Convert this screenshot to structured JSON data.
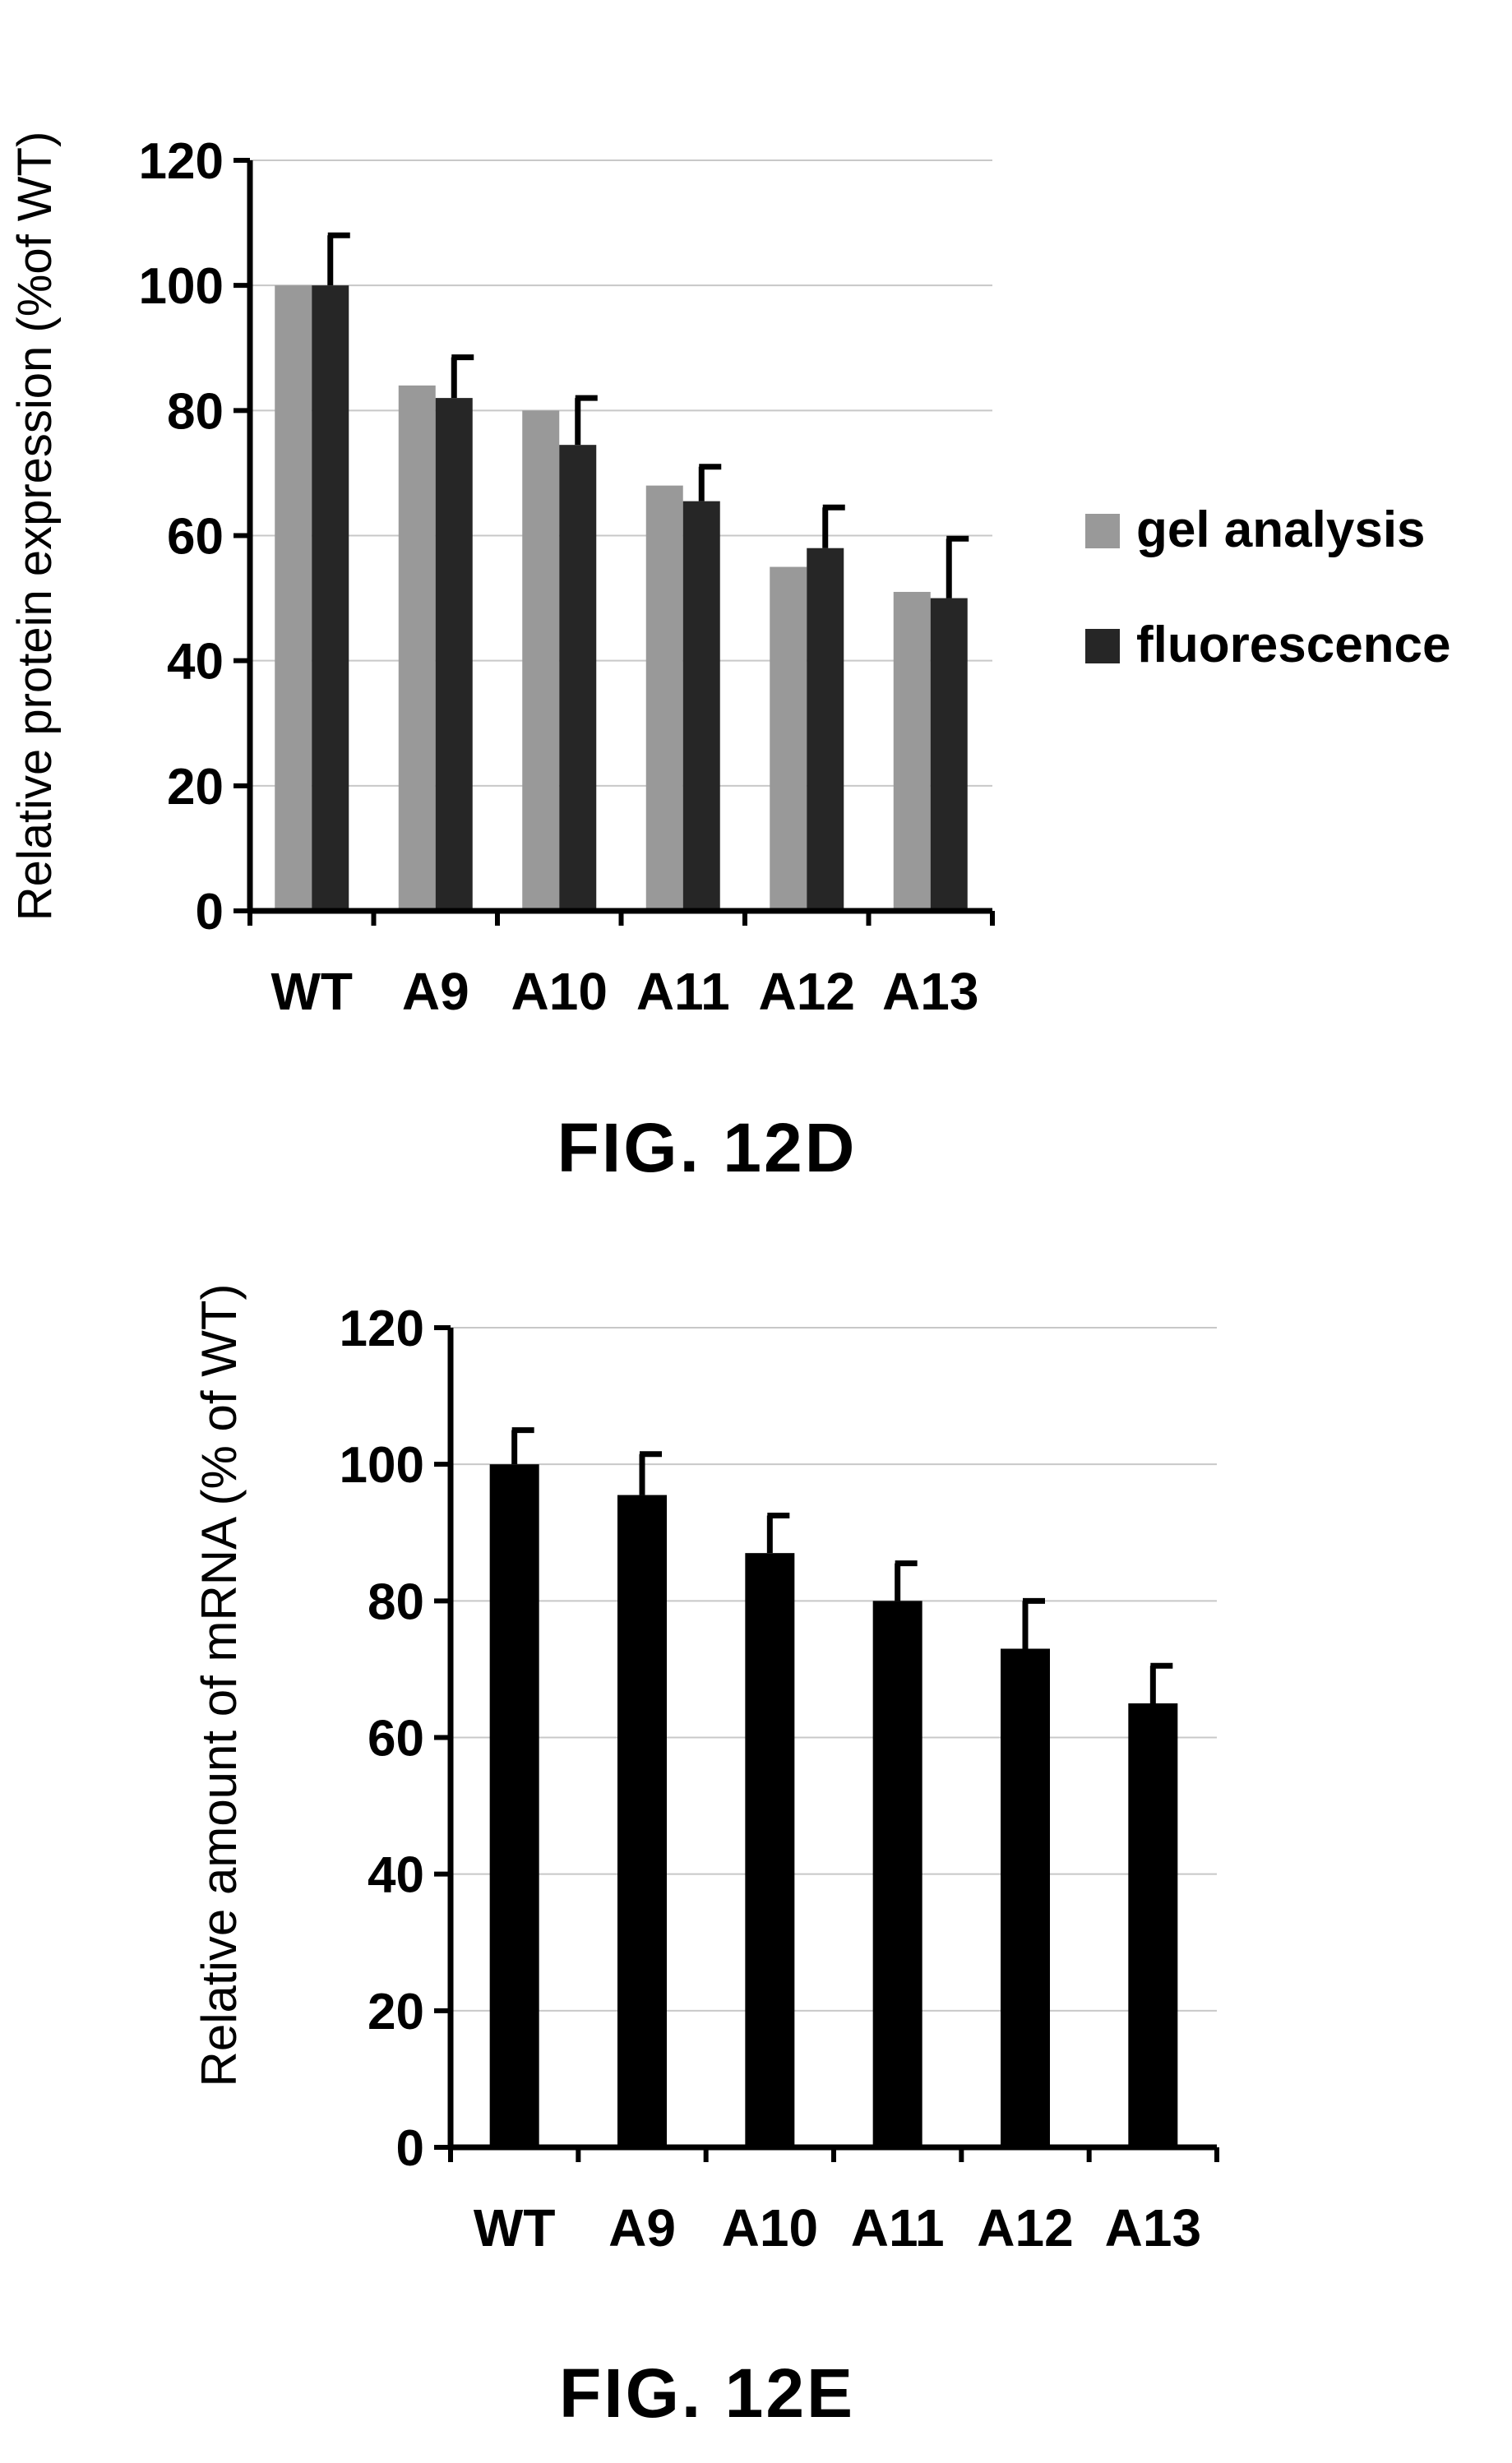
{
  "chart_data": [
    {
      "type": "bar",
      "caption": "FIG. 12D",
      "ylabel": "Relative protein expression  (%of WT)",
      "ylim": [
        0,
        120
      ],
      "yticks": [
        0,
        20,
        40,
        60,
        80,
        100,
        120
      ],
      "grid": true,
      "legend_position": "right",
      "categories": [
        "WT",
        "A9",
        "A10",
        "A11",
        "A12",
        "A13"
      ],
      "series": [
        {
          "name": "gel analysis",
          "color": "#999999",
          "values": [
            100,
            84,
            80,
            68,
            55,
            51
          ],
          "errors": null
        },
        {
          "name": "fluorescence",
          "color": "#262626",
          "values": [
            100,
            82,
            74.5,
            65.5,
            58,
            50
          ],
          "errors": [
            8,
            6.5,
            7.5,
            5.5,
            6.5,
            9.5
          ]
        }
      ]
    },
    {
      "type": "bar",
      "caption": "FIG. 12E",
      "ylabel": "Relative amount of mRNA (% of WT)",
      "ylim": [
        0,
        120
      ],
      "yticks": [
        0,
        20,
        40,
        60,
        80,
        100,
        120
      ],
      "grid": true,
      "categories": [
        "WT",
        "A9",
        "A10",
        "A11",
        "A12",
        "A13"
      ],
      "series": [
        {
          "color": "#000000",
          "values": [
            100,
            95.5,
            87,
            80,
            73,
            65
          ],
          "errors": [
            5,
            6,
            5.5,
            5.5,
            7,
            5.5
          ]
        }
      ]
    }
  ]
}
